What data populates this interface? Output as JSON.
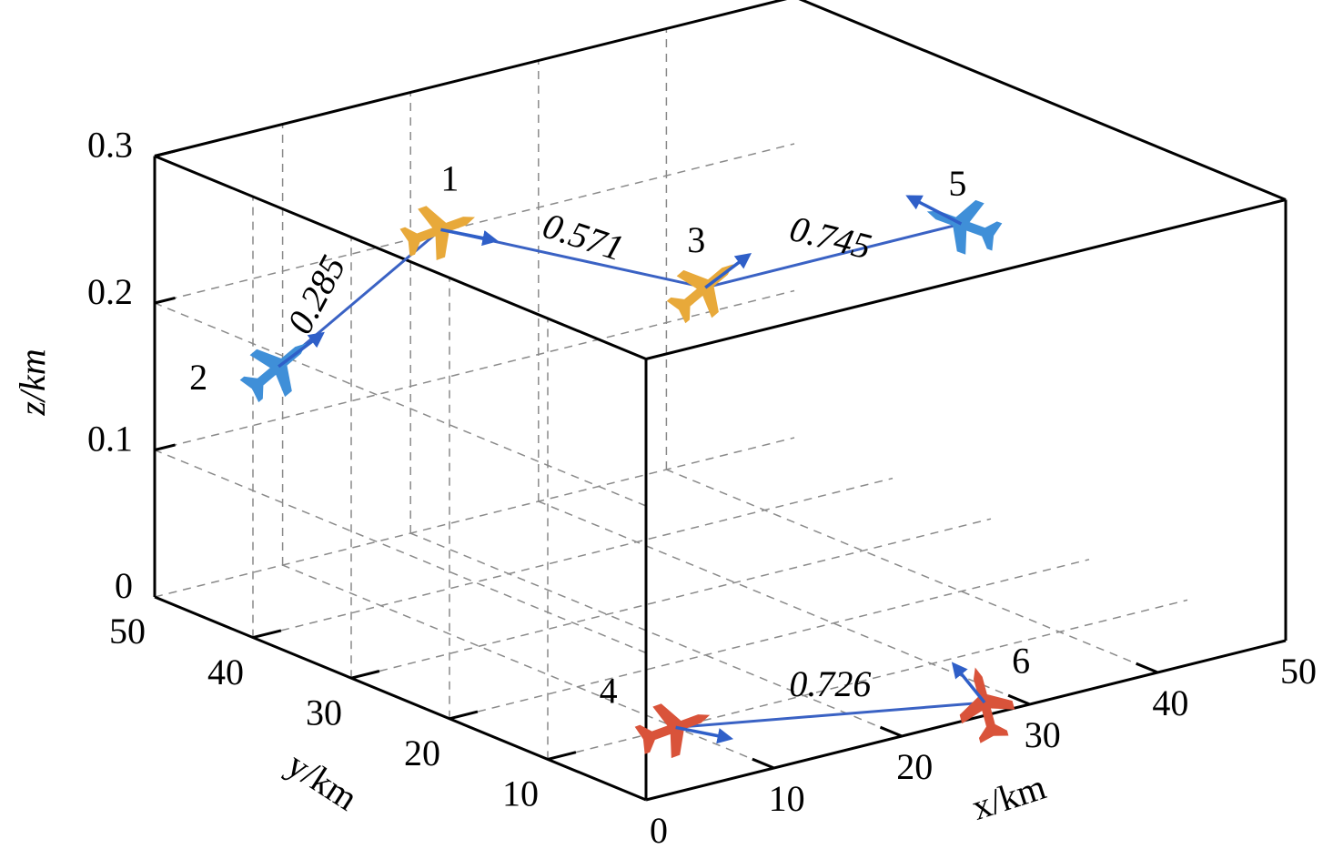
{
  "chart_data": {
    "type": "scatter",
    "projection": "3d",
    "title": "",
    "xlabel": "x/km",
    "ylabel": "y/km",
    "zlabel": "z/km",
    "xlim": [
      0,
      50
    ],
    "ylim": [
      0,
      50
    ],
    "zlim": [
      0,
      0.3
    ],
    "xticks": [
      "0",
      "10",
      "20",
      "30",
      "40",
      "50"
    ],
    "yticks": [
      "10",
      "20",
      "30",
      "40",
      "50"
    ],
    "zticks": [
      "0",
      "0.1",
      "0.2",
      "0.3"
    ],
    "grid": true,
    "legend": "none",
    "nodes": [
      {
        "id": "1",
        "x": 7,
        "y": 30,
        "z": 0.29,
        "color": "#e8a93a",
        "heading": "east"
      },
      {
        "id": "2",
        "x": 2,
        "y": 40,
        "z": 0.18,
        "color": "#3f8fd8",
        "heading": "north-east"
      },
      {
        "id": "3",
        "x": 20,
        "y": 20,
        "z": 0.25,
        "color": "#e8a93a",
        "heading": "north-east"
      },
      {
        "id": "4",
        "x": 10,
        "y": 10,
        "z": 0.0,
        "color": "#d9533a",
        "heading": "east"
      },
      {
        "id": "5",
        "x": 40,
        "y": 20,
        "z": 0.25,
        "color": "#3f8fd8",
        "heading": "west"
      },
      {
        "id": "6",
        "x": 28,
        "y": 2,
        "z": 0.0,
        "color": "#d9533a",
        "heading": "north"
      }
    ],
    "links": [
      {
        "from": "1",
        "to": "2",
        "label": "0.285"
      },
      {
        "from": "1",
        "to": "3",
        "label": "0.571"
      },
      {
        "from": "3",
        "to": "5",
        "label": "0.745"
      },
      {
        "from": "4",
        "to": "6",
        "label": "0.726"
      }
    ],
    "colors": {
      "link": "#3a62c4",
      "arrow": "#2f5fc8",
      "grid": "#8a8a8a"
    }
  }
}
